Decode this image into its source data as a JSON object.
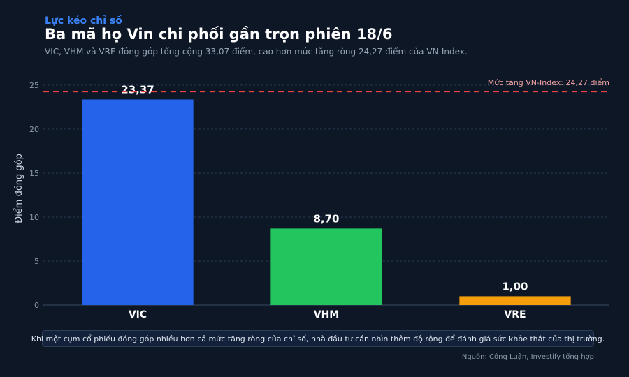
{
  "header": {
    "kicker": "Lực kéo chỉ số",
    "title": "Ba mã họ Vin chi phối gần trọn phiên 18/6",
    "subtitle": "VIC, VHM và VRE đóng góp tổng cộng 33,07 điểm, cao hơn mức tăng ròng 24,27 điểm của VN-Index."
  },
  "chart_data": {
    "type": "bar",
    "categories": [
      "VIC",
      "VHM",
      "VRE"
    ],
    "values": [
      23.37,
      8.7,
      1.0
    ],
    "value_labels": [
      "23,37",
      "8,70",
      "1,00"
    ],
    "colors": [
      "#2563eb",
      "#22c55e",
      "#f59e0b"
    ],
    "ylabel": "Điểm đóng góp",
    "ylim": [
      0,
      26.5
    ],
    "yticks": [
      0,
      5,
      10,
      15,
      20,
      25
    ],
    "grid": true,
    "reference_line": {
      "value": 24.27,
      "label": "Mức tăng VN-Index: 24,27 điểm",
      "color": "#ef4444"
    }
  },
  "footer": {
    "note": "Khi một cụm cổ phiếu đóng góp nhiều hơn cả mức tăng ròng của chỉ số, nhà đầu tư cần nhìn thêm độ rộng để đánh giá sức khỏe thật của thị trường.",
    "source": "Nguồn: Công Luận, Investify tổng hợp"
  }
}
